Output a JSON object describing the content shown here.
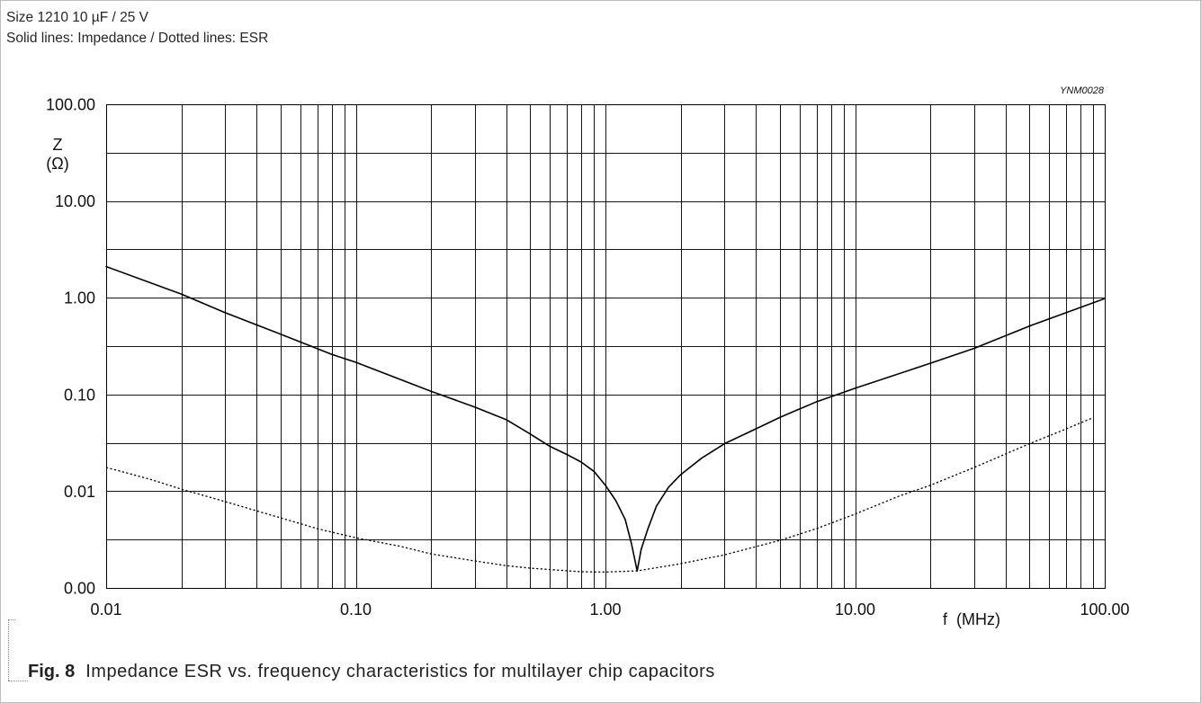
{
  "header": {
    "spec": "Size 1210 10 µF / 25 V"
  },
  "legend": {
    "solid_label": "Solid lines:",
    "separator": "/",
    "dotted_label": "Dotted lines:"
  },
  "figure_code": "YNM0028",
  "caption": {
    "label": "Fig. 8",
    "text": "Impedance ESR vs. frequency characteristics for multilayer chip capacitors"
  },
  "chart_data": {
    "type": "line",
    "xlabel": "f (MHz)",
    "ylabel": "Z",
    "yunit": "(Ω)",
    "xscale": "log",
    "yscale": "log",
    "xlim": [
      0.01,
      100
    ],
    "ylim": [
      0.001,
      100
    ],
    "x_ticks": [
      0.01,
      0.1,
      1,
      10,
      100
    ],
    "x_tick_labels": [
      "0.01",
      "0.10",
      "1.00",
      "10.00",
      "100.00"
    ],
    "y_ticks": [
      100,
      10,
      1,
      0.1,
      0.01,
      0.001
    ],
    "y_tick_labels": [
      "100.00",
      "10.00",
      "1.00",
      "0.10",
      "0.01",
      "0.00"
    ],
    "grid": true,
    "series": [
      {
        "name": "Impedance",
        "line_style": "solid",
        "color": "#000000",
        "x": [
          0.01,
          0.02,
          0.03,
          0.05,
          0.08,
          0.1,
          0.2,
          0.3,
          0.4,
          0.5,
          0.6,
          0.7,
          0.8,
          0.9,
          1.0,
          1.1,
          1.2,
          1.27,
          1.34,
          1.39,
          1.48,
          1.6,
          1.79,
          2.0,
          2.43,
          3.0,
          4.0,
          5.0,
          7.0,
          10,
          20,
          30,
          50,
          100
        ],
        "y": [
          2.1,
          1.09,
          0.7,
          0.42,
          0.26,
          0.215,
          0.108,
          0.074,
          0.055,
          0.039,
          0.029,
          0.024,
          0.02,
          0.016,
          0.0115,
          0.008,
          0.0051,
          0.0029,
          0.0015,
          0.0025,
          0.0041,
          0.007,
          0.011,
          0.0148,
          0.022,
          0.031,
          0.044,
          0.058,
          0.084,
          0.116,
          0.21,
          0.3,
          0.51,
          0.98
        ]
      },
      {
        "name": "ESR",
        "line_style": "dotted",
        "color": "#000000",
        "x": [
          0.01,
          0.015,
          0.02,
          0.03,
          0.05,
          0.07,
          0.1,
          0.15,
          0.2,
          0.3,
          0.4,
          0.5,
          0.8,
          1.0,
          1.34,
          2.0,
          3.0,
          5.0,
          7.0,
          10,
          15,
          20,
          30,
          50,
          70,
          89
        ],
        "y": [
          0.0176,
          0.0133,
          0.0105,
          0.0078,
          0.0053,
          0.0041,
          0.0033,
          0.0027,
          0.00225,
          0.0019,
          0.0017,
          0.0016,
          0.00147,
          0.00146,
          0.0015,
          0.00178,
          0.0022,
          0.0031,
          0.0041,
          0.0058,
          0.0089,
          0.0115,
          0.0176,
          0.031,
          0.044,
          0.057
        ]
      }
    ]
  }
}
